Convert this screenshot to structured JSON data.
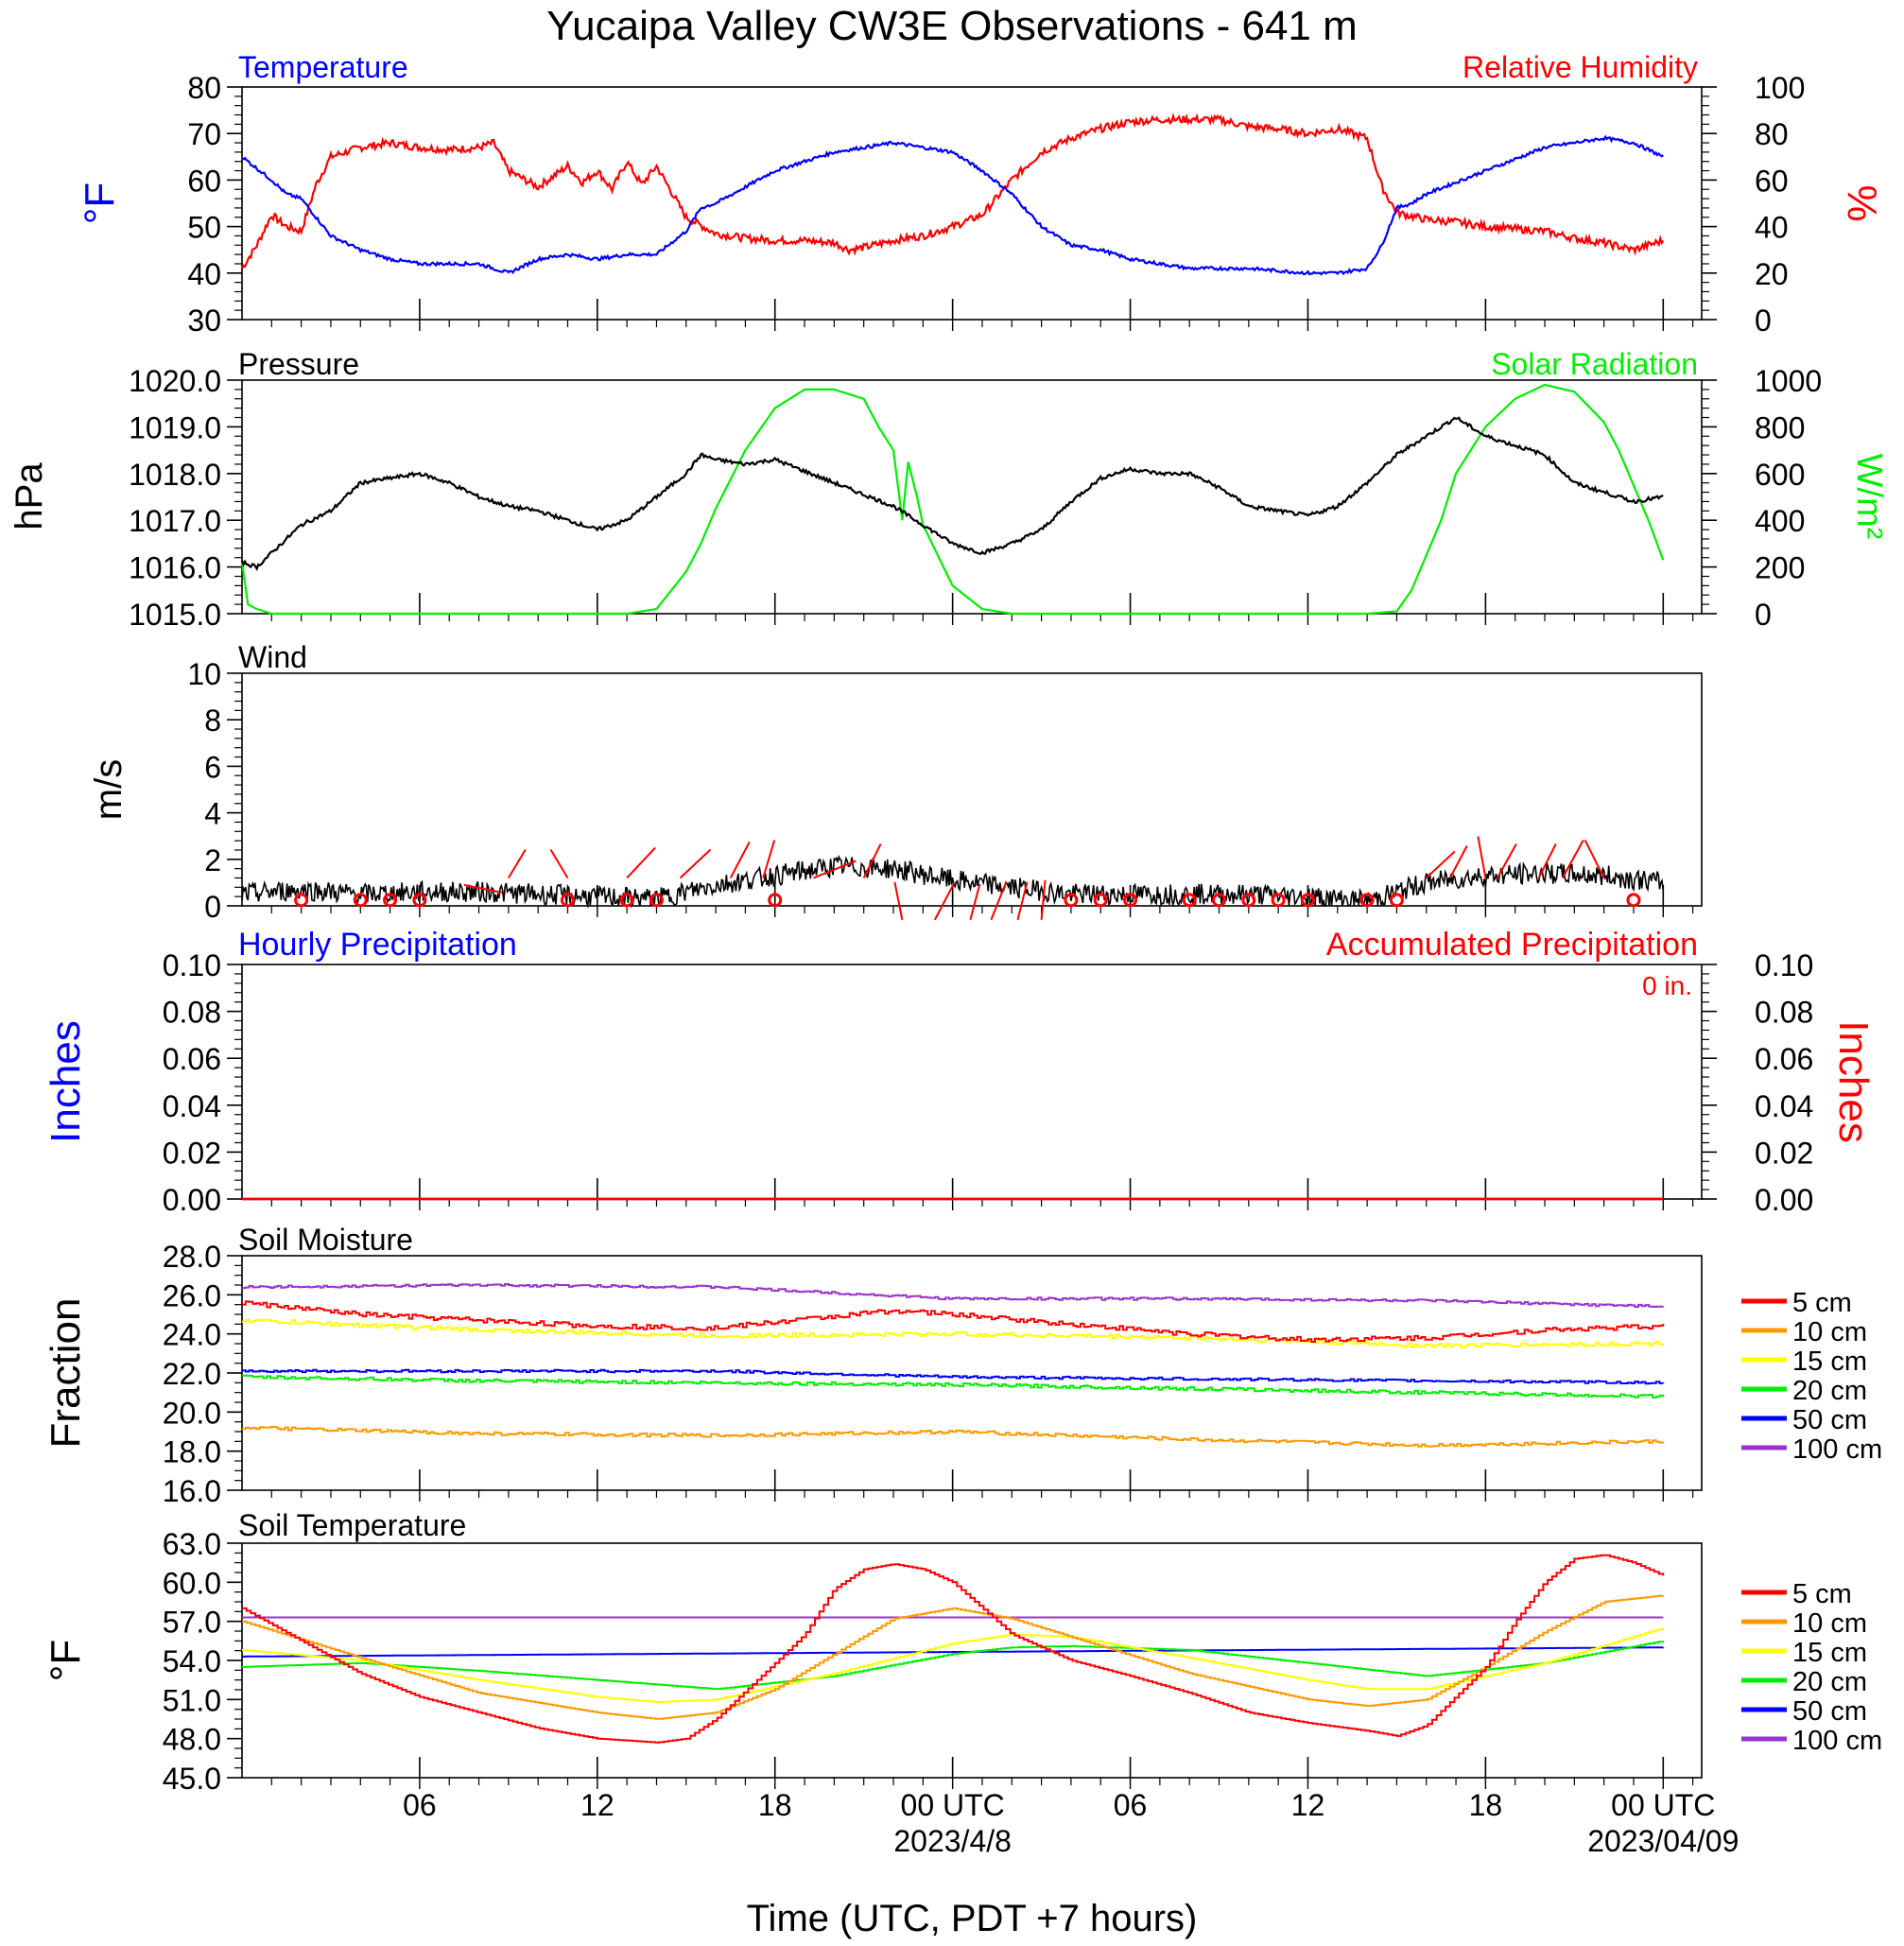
{
  "title": "Yucaipa Valley CW3E Observations - 641 m",
  "xaxis": {
    "title": "Time (UTC, PDT +7 hours)",
    "ticks": [
      {
        "hour": 6,
        "label": "06"
      },
      {
        "hour": 12,
        "label": "12"
      },
      {
        "hour": 18,
        "label": "18"
      },
      {
        "hour": 24,
        "label": "00 UTC",
        "sub": "2023/4/8"
      },
      {
        "hour": 30,
        "label": "06"
      },
      {
        "hour": 36,
        "label": "12"
      },
      {
        "hour": 42,
        "label": "18"
      },
      {
        "hour": 48,
        "label": "00 UTC",
        "sub": "2023/04/09"
      }
    ]
  },
  "panels": {
    "temp_rh": {
      "left_label": "Temperature",
      "right_label": "Relative Humidity",
      "left_unit": "°F",
      "right_unit": "%",
      "left_ticks": [
        "80",
        "70",
        "60",
        "50",
        "40",
        "30"
      ],
      "right_ticks": [
        "100",
        "80",
        "60",
        "40",
        "20",
        "0"
      ]
    },
    "pressure_solar": {
      "left_label": "Pressure",
      "right_label": "Solar Radiation",
      "left_unit": "hPa",
      "right_unit": "W/m²",
      "left_ticks": [
        "1020.0",
        "1019.0",
        "1018.0",
        "1017.0",
        "1016.0",
        "1015.0"
      ],
      "right_ticks": [
        "1000",
        "800",
        "600",
        "400",
        "200",
        "0"
      ]
    },
    "wind": {
      "label": "Wind",
      "unit": "m/s",
      "ticks": [
        "10",
        "8",
        "6",
        "4",
        "2",
        "0"
      ]
    },
    "precip": {
      "left_label": "Hourly Precipitation",
      "right_label": "Accumulated Precipitation",
      "accum_value": "0 in.",
      "left_unit": "Inches",
      "right_unit": "Inches",
      "left_ticks": [
        "0.10",
        "0.08",
        "0.06",
        "0.04",
        "0.02",
        "0.00"
      ],
      "right_ticks": [
        "0.10",
        "0.08",
        "0.06",
        "0.04",
        "0.02",
        "0.00"
      ]
    },
    "soil_moisture": {
      "label": "Soil Moisture",
      "unit": "Fraction",
      "ticks": [
        "28.0",
        "26.0",
        "24.0",
        "22.0",
        "20.0",
        "18.0",
        "16.0"
      ]
    },
    "soil_temp": {
      "label": "Soil Temperature",
      "unit": "°F",
      "ticks": [
        "63.0",
        "60.0",
        "57.0",
        "54.0",
        "51.0",
        "48.0",
        "45.0"
      ]
    }
  },
  "chart_data": [
    {
      "type": "line",
      "title": "Temperature / Relative Humidity",
      "x_unit": "hours from 2023-04-07 00 UTC",
      "ylim_left": [
        30,
        80
      ],
      "ylim_right": [
        0,
        100
      ],
      "series": [
        {
          "name": "Temperature",
          "axis": "left",
          "color": "#0000ff",
          "x": [
            0,
            1,
            1.5,
            2,
            3,
            4,
            5,
            6,
            7,
            8,
            9,
            10,
            11,
            12,
            13,
            14,
            15,
            15.5,
            16,
            18,
            20,
            22,
            24,
            25,
            26,
            27,
            28,
            29,
            30,
            32,
            34,
            36,
            37,
            38,
            38.5,
            39,
            39.5,
            40,
            42,
            44,
            46,
            47,
            48
          ],
          "y": [
            65,
            60,
            57,
            56,
            48,
            45,
            43,
            42,
            42,
            42,
            40,
            43,
            44,
            43,
            44,
            44,
            49,
            54,
            55,
            62,
            66,
            68,
            66,
            62,
            57,
            50,
            46,
            45,
            43,
            41,
            41,
            40,
            40,
            41,
            46,
            54,
            55,
            57,
            62,
            67,
            69,
            68,
            65
          ]
        },
        {
          "name": "Relative Humidity",
          "axis": "right",
          "color": "#ff0000",
          "x": [
            0,
            0.5,
            1,
            1.5,
            2,
            2.5,
            3,
            4,
            5,
            6,
            7,
            8,
            8.5,
            9,
            10,
            11,
            11.5,
            12,
            12.5,
            13,
            13.5,
            14,
            15,
            16,
            17,
            18,
            19,
            20,
            20.5,
            21,
            22,
            23,
            24,
            25,
            26,
            27,
            28,
            29,
            30,
            31,
            32,
            33,
            34,
            35,
            36,
            37,
            38,
            38.5,
            39,
            40,
            41,
            42,
            43,
            44,
            45,
            46,
            47,
            48
          ],
          "y": [
            22,
            32,
            45,
            40,
            38,
            58,
            70,
            74,
            76,
            74,
            73,
            74,
            76,
            64,
            57,
            66,
            59,
            64,
            56,
            68,
            58,
            66,
            44,
            37,
            35,
            34,
            34,
            33,
            30,
            31,
            34,
            36,
            40,
            45,
            60,
            72,
            78,
            82,
            85,
            86,
            86,
            86,
            83,
            82,
            80,
            82,
            78,
            57,
            46,
            43,
            42,
            40,
            39,
            38,
            35,
            33,
            30,
            34
          ]
        }
      ]
    },
    {
      "type": "line",
      "title": "Pressure / Solar Radiation",
      "ylim_left": [
        1015,
        1020
      ],
      "ylim_right": [
        0,
        1000
      ],
      "series": [
        {
          "name": "Pressure",
          "axis": "left",
          "color": "#000000",
          "x": [
            0,
            0.5,
            1,
            2,
            3,
            4,
            6,
            7,
            8,
            9,
            10,
            11,
            12,
            13,
            14,
            15,
            15.5,
            16,
            17,
            18,
            20,
            22,
            24,
            25,
            26,
            27,
            28,
            29,
            30,
            31,
            32,
            33,
            34,
            35,
            36,
            37,
            38,
            39,
            40,
            41,
            42,
            43,
            44,
            45,
            46,
            47,
            48
          ],
          "y": [
            1016.1,
            1016.0,
            1016.3,
            1016.9,
            1017.2,
            1017.8,
            1018.0,
            1017.8,
            1017.5,
            1017.3,
            1017.2,
            1017.0,
            1016.8,
            1017.0,
            1017.5,
            1018.0,
            1018.4,
            1018.3,
            1018.2,
            1018.3,
            1017.8,
            1017.3,
            1016.5,
            1016.3,
            1016.5,
            1016.8,
            1017.4,
            1017.9,
            1018.1,
            1018.0,
            1018.0,
            1017.7,
            1017.3,
            1017.2,
            1017.1,
            1017.3,
            1017.8,
            1018.4,
            1018.8,
            1019.2,
            1018.8,
            1018.6,
            1018.4,
            1017.8,
            1017.6,
            1017.4,
            1017.5
          ]
        },
        {
          "name": "Solar Radiation",
          "axis": "right",
          "color": "#00ee00",
          "x": [
            0,
            0.2,
            0.5,
            1,
            12,
            13,
            14,
            14.5,
            15,
            15.5,
            16,
            17,
            18,
            19,
            20,
            21,
            21.5,
            22,
            22.3,
            22.5,
            22.8,
            23,
            23.5,
            24,
            25,
            26,
            38,
            39,
            39.5,
            40,
            40.5,
            41,
            42,
            43,
            44,
            45,
            46,
            46.5,
            47,
            47.5,
            48
          ],
          "y": [
            220,
            40,
            20,
            0,
            0,
            0,
            20,
            100,
            180,
            300,
            450,
            700,
            880,
            960,
            960,
            920,
            800,
            700,
            400,
            650,
            500,
            380,
            250,
            120,
            20,
            0,
            0,
            10,
            100,
            250,
            400,
            600,
            800,
            920,
            980,
            950,
            820,
            700,
            550,
            400,
            230
          ]
        }
      ]
    },
    {
      "type": "line",
      "title": "Wind",
      "ylim": [
        0,
        10
      ],
      "series": [
        {
          "name": "Wind speed",
          "color": "#000000",
          "x": [
            0,
            2,
            4,
            6,
            8,
            10,
            12,
            14,
            16,
            18,
            20,
            22,
            24,
            26,
            28,
            30,
            32,
            34,
            36,
            38,
            40,
            42,
            44,
            46,
            48
          ],
          "y": [
            0.5,
            0.7,
            0.5,
            0.6,
            0.6,
            0.5,
            0.4,
            0.3,
            0.9,
            1.3,
            1.7,
            1.6,
            1.1,
            0.8,
            0.5,
            0.5,
            0.5,
            0.5,
            0.4,
            0.2,
            1.0,
            1.3,
            1.4,
            1.3,
            1.0
          ]
        }
      ]
    },
    {
      "type": "line",
      "title": "Hourly / Accumulated Precipitation",
      "ylim_left": [
        0,
        0.1
      ],
      "ylim_right": [
        0,
        0.1
      ],
      "series": [
        {
          "name": "Hourly Precipitation",
          "axis": "left",
          "color": "#0000ff",
          "x": [
            0,
            48
          ],
          "y": [
            0,
            0
          ]
        },
        {
          "name": "Accumulated Precipitation",
          "axis": "right",
          "color": "#ff0000",
          "x": [
            0,
            48
          ],
          "y": [
            0,
            0
          ]
        }
      ]
    },
    {
      "type": "line",
      "title": "Soil Moisture",
      "ylim": [
        16,
        28
      ],
      "series": [
        {
          "name": "5 cm",
          "color": "#ff0000",
          "x": [
            0,
            4,
            8,
            12,
            16,
            20,
            22,
            24,
            28,
            32,
            36,
            40,
            44,
            48
          ],
          "y": [
            25.6,
            25.0,
            24.7,
            24.4,
            24.3,
            24.9,
            25.2,
            25.0,
            24.5,
            24.0,
            23.7,
            23.8,
            24.2,
            24.4
          ]
        },
        {
          "name": "10 cm",
          "color": "#ff9900",
          "x": [
            0,
            8,
            16,
            24,
            32,
            40,
            48
          ],
          "y": [
            19.2,
            18.9,
            18.8,
            19.0,
            18.6,
            18.3,
            18.5
          ]
        },
        {
          "name": "15 cm",
          "color": "#ffff00",
          "x": [
            0,
            8,
            16,
            24,
            32,
            40,
            48
          ],
          "y": [
            24.7,
            24.2,
            23.9,
            24.0,
            23.8,
            23.4,
            23.5
          ]
        },
        {
          "name": "20 cm",
          "color": "#00ee00",
          "x": [
            0,
            8,
            16,
            24,
            32,
            40,
            48
          ],
          "y": [
            21.8,
            21.6,
            21.5,
            21.4,
            21.2,
            21.0,
            20.8
          ]
        },
        {
          "name": "50 cm",
          "color": "#0000ff",
          "x": [
            0,
            8,
            16,
            24,
            32,
            40,
            48
          ],
          "y": [
            22.1,
            22.1,
            22.1,
            21.8,
            21.7,
            21.6,
            21.5
          ]
        },
        {
          "name": "100 cm",
          "color": "#9933cc",
          "x": [
            0,
            8,
            16,
            24,
            32,
            40,
            48
          ],
          "y": [
            26.4,
            26.5,
            26.4,
            25.8,
            25.8,
            25.7,
            25.4
          ]
        }
      ]
    },
    {
      "type": "line",
      "title": "Soil Temperature",
      "ylim": [
        45,
        63
      ],
      "series": [
        {
          "name": "5 cm",
          "color": "#ff0000",
          "x": [
            0,
            2,
            4,
            6,
            8,
            10,
            12,
            14,
            15,
            16,
            18,
            19,
            20,
            21,
            22,
            23,
            24,
            25,
            26,
            28,
            30,
            32,
            34,
            36,
            38,
            39,
            40,
            42,
            43,
            44,
            45,
            46,
            47,
            48
          ],
          "y": [
            58.0,
            55.5,
            53.0,
            51.2,
            50.0,
            48.8,
            48.0,
            47.7,
            48.0,
            49.5,
            53.8,
            56.0,
            59.5,
            61.0,
            61.4,
            61.0,
            60.0,
            58.0,
            56.0,
            54.0,
            52.8,
            51.5,
            50.0,
            49.2,
            48.6,
            48.2,
            49.0,
            53.5,
            57.0,
            60.0,
            61.8,
            62.1,
            61.5,
            60.5
          ]
        },
        {
          "name": "10 cm",
          "color": "#ff9900",
          "x": [
            0,
            4,
            8,
            12,
            14,
            16,
            18,
            20,
            22,
            24,
            26,
            28,
            32,
            36,
            38,
            40,
            42,
            44,
            46,
            48
          ],
          "y": [
            57.0,
            54.2,
            51.5,
            50.0,
            49.5,
            50.0,
            51.8,
            54.5,
            57.2,
            58.0,
            57.2,
            55.8,
            53.0,
            51.0,
            50.5,
            51.0,
            53.5,
            56.2,
            58.5,
            59.0
          ]
        },
        {
          "name": "15 cm",
          "color": "#ffff00",
          "x": [
            0,
            4,
            8,
            12,
            14,
            16,
            20,
            24,
            26,
            28,
            32,
            36,
            38,
            40,
            44,
            48
          ],
          "y": [
            54.8,
            54.0,
            52.5,
            51.2,
            50.8,
            51.0,
            53.0,
            55.3,
            56.0,
            55.8,
            54.2,
            52.5,
            51.8,
            51.8,
            53.8,
            56.5
          ]
        },
        {
          "name": "20 cm",
          "color": "#00ee00",
          "x": [
            0,
            4,
            8,
            12,
            16,
            20,
            24,
            26,
            28,
            32,
            36,
            40,
            44,
            48
          ],
          "y": [
            53.5,
            53.8,
            53.2,
            52.5,
            51.8,
            52.8,
            54.5,
            55.0,
            55.1,
            54.8,
            53.8,
            52.8,
            53.8,
            55.5
          ]
        },
        {
          "name": "50 cm",
          "color": "#0000ff",
          "x": [
            0,
            48
          ],
          "y": [
            54.3,
            55.0
          ]
        },
        {
          "name": "100 cm",
          "color": "#9933cc",
          "x": [
            0,
            48
          ],
          "y": [
            57.3,
            57.3
          ]
        }
      ]
    }
  ],
  "legend": {
    "items": [
      "5 cm",
      "10 cm",
      "15 cm",
      "20 cm",
      "50 cm",
      "100 cm"
    ],
    "colors": [
      "#ff0000",
      "#ff9900",
      "#ffff00",
      "#00ee00",
      "#0000ff",
      "#9933cc"
    ]
  }
}
